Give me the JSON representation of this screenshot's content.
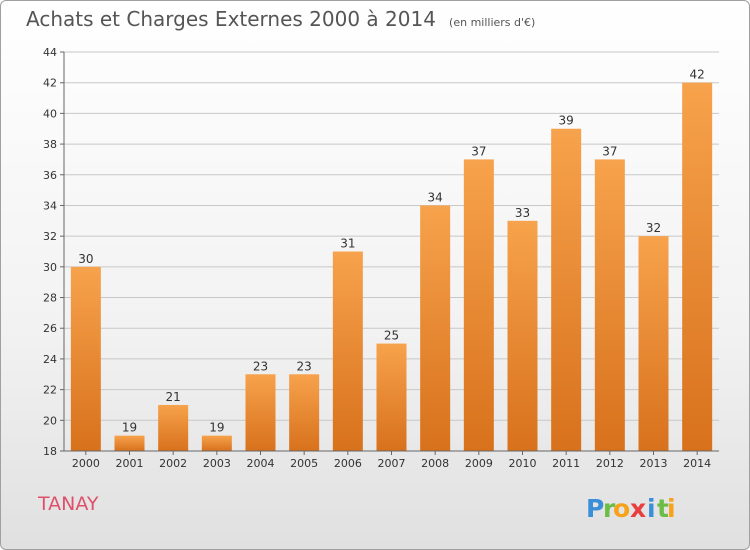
{
  "header": {
    "title": "Achats et Charges Externes 2000 à 2014",
    "subtitle": "(en milliers d'€)"
  },
  "location": "TANAY",
  "logo": {
    "letters": [
      {
        "ch": "P",
        "color": "#3a8fd8"
      },
      {
        "ch": "r",
        "color": "#6cbd45"
      },
      {
        "ch": "o",
        "color": "#f7a21b"
      },
      {
        "ch": "x",
        "color": "#e83e3e"
      },
      {
        "ch": "i",
        "color": "#3a8fd8"
      },
      {
        "ch": "t",
        "color": "#6cbd45"
      },
      {
        "ch": "i",
        "color": "#f7a21b"
      }
    ]
  },
  "colors": {
    "bar_top": "#f7a24c",
    "bar_bottom": "#d8711c",
    "grid": "#c8c8c8",
    "axis": "#666666",
    "text": "#333333",
    "location": "#e0506a"
  },
  "chart_data": {
    "type": "bar",
    "categories": [
      "2000",
      "2001",
      "2002",
      "2003",
      "2004",
      "2005",
      "2006",
      "2007",
      "2008",
      "2009",
      "2010",
      "2011",
      "2012",
      "2013",
      "2014"
    ],
    "values": [
      30,
      19,
      21,
      19,
      23,
      23,
      31,
      25,
      34,
      37,
      33,
      39,
      37,
      32,
      42
    ],
    "data_labels": [
      "30",
      "19",
      "21",
      "19",
      "23",
      "23",
      "31",
      "25",
      "34",
      "37",
      "33",
      "39",
      "37",
      "32",
      "42"
    ],
    "ylim": [
      18,
      44
    ],
    "yticks": [
      18,
      20,
      22,
      24,
      26,
      28,
      30,
      32,
      34,
      36,
      38,
      40,
      42,
      44
    ],
    "grid": "horizontal",
    "xlabel": "",
    "ylabel": ""
  }
}
